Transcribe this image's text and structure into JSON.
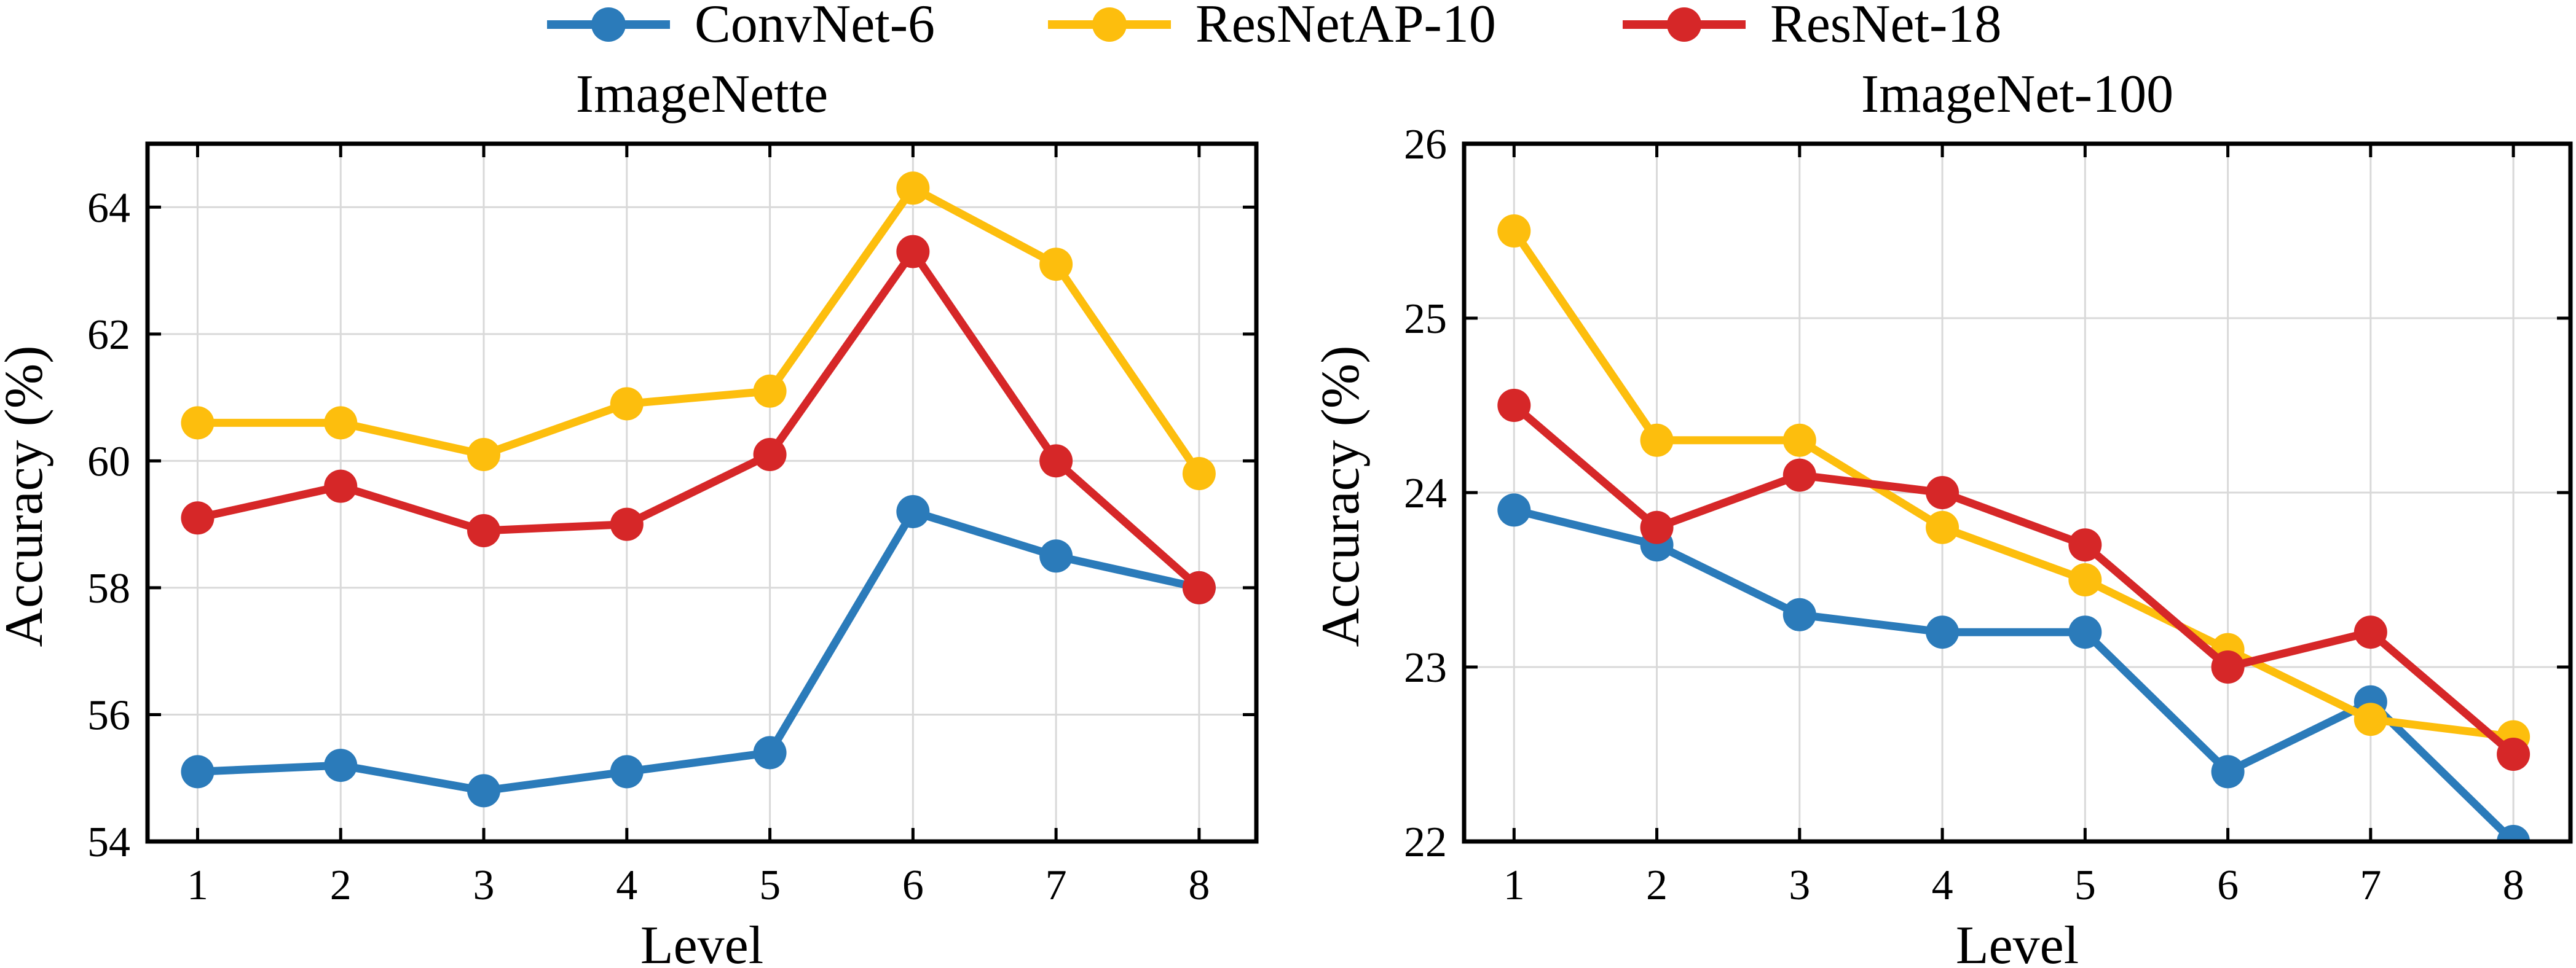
{
  "legend": [
    {
      "name": "ConvNet-6",
      "color": "#2b7bba"
    },
    {
      "name": "ResNetAP-10",
      "color": "#fdbe0d"
    },
    {
      "name": "ResNet-18",
      "color": "#d62728"
    }
  ],
  "chart_data": [
    {
      "type": "line",
      "title": "ImageNette",
      "xlabel": "Level",
      "ylabel": "Accuracy (%)",
      "x": [
        1,
        2,
        3,
        4,
        5,
        6,
        7,
        8
      ],
      "x_ticks": [
        "1",
        "2",
        "3",
        "4",
        "5",
        "6",
        "7",
        "8"
      ],
      "xlim": [
        0.65,
        8.4
      ],
      "ylim": [
        54,
        65
      ],
      "y_ticks": [
        "54",
        "56",
        "58",
        "60",
        "62",
        "64"
      ],
      "grid": true,
      "series": [
        {
          "name": "ConvNet-6",
          "color": "#2b7bba",
          "values": [
            55.1,
            55.2,
            54.8,
            55.1,
            55.4,
            59.2,
            58.5,
            58.0
          ]
        },
        {
          "name": "ResNetAP-10",
          "color": "#fdbe0d",
          "values": [
            60.6,
            60.6,
            60.1,
            60.9,
            61.1,
            64.3,
            63.1,
            59.8
          ]
        },
        {
          "name": "ResNet-18",
          "color": "#d62728",
          "values": [
            59.1,
            59.6,
            58.9,
            59.0,
            60.1,
            63.3,
            60.0,
            58.0
          ]
        }
      ]
    },
    {
      "type": "line",
      "title": "ImageNet-100",
      "xlabel": "Level",
      "ylabel": "Accuracy (%)",
      "x": [
        1,
        2,
        3,
        4,
        5,
        6,
        7,
        8
      ],
      "x_ticks": [
        "1",
        "2",
        "3",
        "4",
        "5",
        "6",
        "7",
        "8"
      ],
      "xlim": [
        0.65,
        8.4
      ],
      "ylim": [
        22,
        26
      ],
      "y_ticks": [
        "22",
        "23",
        "24",
        "25",
        "26"
      ],
      "grid": true,
      "series": [
        {
          "name": "ConvNet-6",
          "color": "#2b7bba",
          "values": [
            23.9,
            23.7,
            23.3,
            23.2,
            23.2,
            22.4,
            22.8,
            22.0
          ]
        },
        {
          "name": "ResNetAP-10",
          "color": "#fdbe0d",
          "values": [
            25.5,
            24.3,
            24.3,
            23.8,
            23.5,
            23.1,
            22.7,
            22.6
          ]
        },
        {
          "name": "ResNet-18",
          "color": "#d62728",
          "values": [
            24.5,
            23.8,
            24.1,
            24.0,
            23.7,
            23.0,
            23.2,
            22.5
          ]
        }
      ]
    }
  ]
}
